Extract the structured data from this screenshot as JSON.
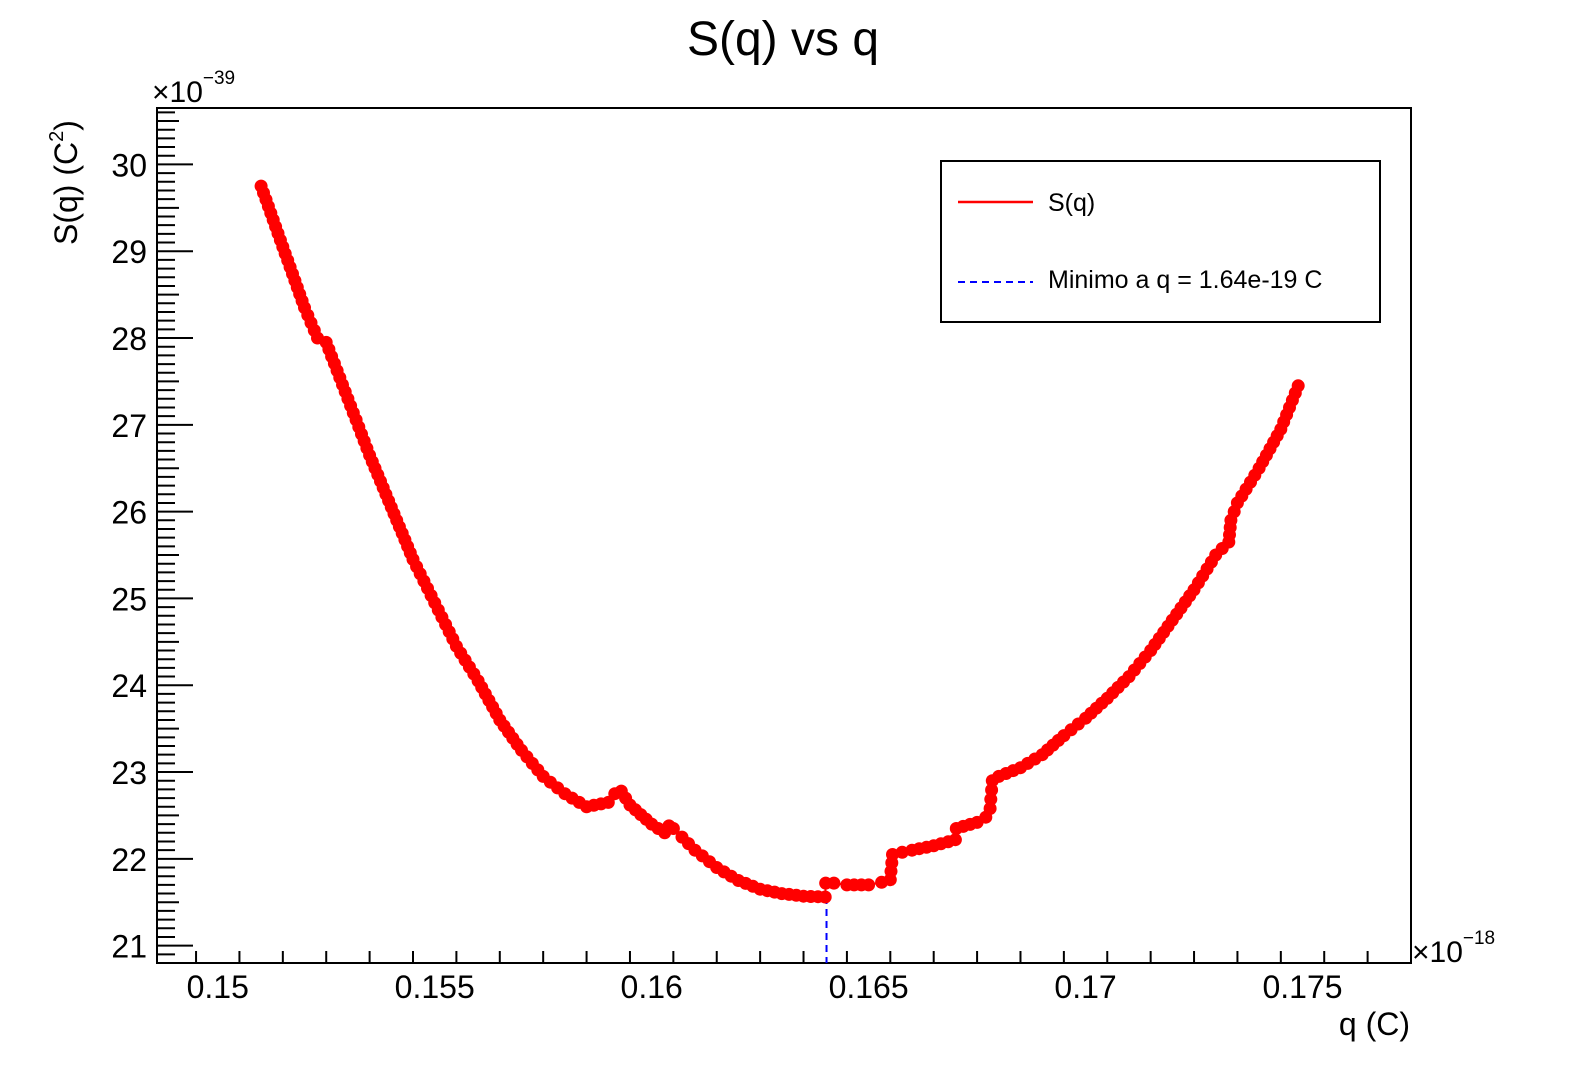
{
  "chart_data": {
    "type": "scatter",
    "title": "S(q) vs q",
    "xlabel": "q (C)",
    "ylabel": "S(q) (C²)",
    "ylabel_main": "S(q) (C",
    "ylabel_sup": "2",
    "ylabel_close": ")",
    "x_multiplier": {
      "base": "×10",
      "exp": "−18"
    },
    "y_multiplier": {
      "base": "×10",
      "exp": "−39"
    },
    "xlim": [
      0.1486,
      0.1775
    ],
    "ylim": [
      20.8,
      30.65
    ],
    "x_ticks": [
      0.15,
      0.155,
      0.16,
      0.165,
      0.17,
      0.175
    ],
    "x_tick_labels": [
      "0.15",
      "0.155",
      "0.16",
      "0.165",
      "0.17",
      "0.175"
    ],
    "y_ticks": [
      21,
      22,
      23,
      24,
      25,
      26,
      27,
      28,
      29,
      30
    ],
    "y_tick_labels": [
      "21",
      "22",
      "23",
      "24",
      "25",
      "26",
      "27",
      "28",
      "29",
      "30"
    ],
    "grid": false,
    "legend": {
      "position": "top-right",
      "entries": [
        {
          "label": "S(q)",
          "style": "solid",
          "color": "#ff0000"
        },
        {
          "label": "Minimo a q = 1.64e-19 C",
          "style": "dashed",
          "color": "#0000ff"
        }
      ]
    },
    "colors": {
      "series": "#ff0000",
      "minimum_line": "#0000ff"
    },
    "series": [
      {
        "name": "S(q)",
        "color": "#ff0000",
        "x": [
          0.151,
          0.1515,
          0.152,
          0.1523,
          0.1525,
          0.153,
          0.1535,
          0.154,
          0.1545,
          0.155,
          0.1555,
          0.156,
          0.1565,
          0.157,
          0.1575,
          0.158,
          0.1585,
          0.159,
          0.15915,
          0.1593,
          0.1595,
          0.16,
          0.1603,
          0.1604,
          0.1605,
          0.1607,
          0.161,
          0.1615,
          0.162,
          0.1625,
          0.163,
          0.1635,
          0.164,
          0.16401,
          0.1642,
          0.1645,
          0.165,
          0.1653,
          0.1655,
          0.16555,
          0.166,
          0.1665,
          0.167,
          0.16702,
          0.1675,
          0.1677,
          0.1678,
          0.16785,
          0.168,
          0.1685,
          0.169,
          0.1695,
          0.17,
          0.1705,
          0.171,
          0.1715,
          0.172,
          0.1725,
          0.173,
          0.1733,
          0.17335,
          0.1735,
          0.174,
          0.1745,
          0.1749
        ],
        "y": [
          29.75,
          29.05,
          28.35,
          28.0,
          27.95,
          27.3,
          26.65,
          26.05,
          25.45,
          24.95,
          24.45,
          24.05,
          23.6,
          23.25,
          22.95,
          22.75,
          22.6,
          22.65,
          22.75,
          22.78,
          22.62,
          22.4,
          22.3,
          22.38,
          22.35,
          22.25,
          22.1,
          21.9,
          21.75,
          21.65,
          21.6,
          21.57,
          21.56,
          21.72,
          21.72,
          21.7,
          21.7,
          21.73,
          21.76,
          22.05,
          22.1,
          22.15,
          22.22,
          22.35,
          22.42,
          22.48,
          22.58,
          22.9,
          22.95,
          23.05,
          23.2,
          23.42,
          23.62,
          23.85,
          24.1,
          24.4,
          24.75,
          25.1,
          25.5,
          25.65,
          25.9,
          26.1,
          26.5,
          26.95,
          27.45
        ]
      }
    ],
    "minimum": {
      "q": 0.16403,
      "S": 21.56
    }
  }
}
